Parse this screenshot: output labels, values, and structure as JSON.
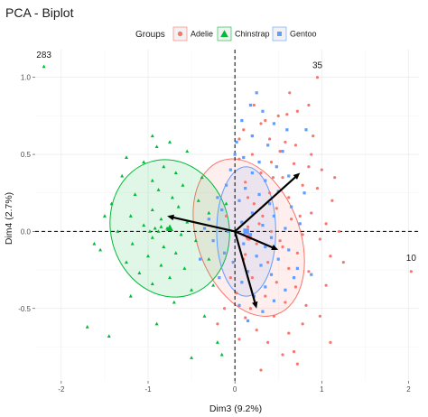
{
  "chart_data": {
    "type": "scatter",
    "title": "PCA - Biplot",
    "xlabel": "Dim3 (9.2%)",
    "ylabel": "Dim4 (2.7%)",
    "xlim": [
      -2.3,
      2.12
    ],
    "ylim": [
      -0.97,
      1.18
    ],
    "x_ticks": [
      -2,
      -1,
      0,
      1,
      2
    ],
    "y_ticks": [
      -0.5,
      0.0,
      0.5,
      1.0
    ],
    "x_tick_labels": [
      "-2",
      "-1",
      "0",
      "1",
      "2"
    ],
    "y_tick_labels": [
      "-0.5",
      "0.0",
      "0.5",
      "1.0"
    ],
    "grid": true,
    "legend": {
      "title": "Groups",
      "position": "top",
      "entries": [
        {
          "name": "Adelie",
          "color": "#F8766D",
          "shape": "circle"
        },
        {
          "name": "Chinstrap",
          "color": "#00BA38",
          "shape": "triangle"
        },
        {
          "name": "Gentoo",
          "color": "#619CFF",
          "shape": "square"
        }
      ]
    },
    "reference_lines": {
      "x": 0,
      "y": 0,
      "style": "dashed"
    },
    "series": [
      {
        "name": "Adelie",
        "color": "#F8766D",
        "shape": "circle",
        "ellipse": {
          "cx": 0.16,
          "cy": -0.04,
          "rx": 0.59,
          "ry": 0.53,
          "angle": -20
        },
        "centroid": [
          0.16,
          -0.04
        ],
        "points": [
          [
            0.95,
            1.0
          ],
          [
            0.85,
            0.82
          ],
          [
            0.72,
            0.78
          ],
          [
            0.6,
            0.76
          ],
          [
            0.35,
            0.72
          ],
          [
            0.3,
            0.7
          ],
          [
            0.1,
            0.66
          ],
          [
            0.05,
            0.6
          ],
          [
            0.2,
            0.62
          ],
          [
            0.4,
            0.6
          ],
          [
            0.58,
            0.58
          ],
          [
            0.7,
            0.56
          ],
          [
            0.52,
            0.52
          ],
          [
            0.2,
            0.5
          ],
          [
            0.05,
            0.47
          ],
          [
            0.42,
            0.45
          ],
          [
            0.68,
            0.44
          ],
          [
            0.85,
            0.42
          ],
          [
            1.0,
            0.4
          ],
          [
            0.3,
            0.38
          ],
          [
            0.55,
            0.35
          ],
          [
            0.12,
            0.32
          ],
          [
            0.78,
            0.3
          ],
          [
            0.95,
            0.28
          ],
          [
            0.4,
            0.25
          ],
          [
            0.62,
            0.22
          ],
          [
            1.12,
            0.2
          ],
          [
            0.22,
            0.18
          ],
          [
            0.48,
            0.15
          ],
          [
            0.88,
            0.12
          ],
          [
            0.32,
            0.1
          ],
          [
            0.65,
            0.08
          ],
          [
            1.05,
            0.05
          ],
          [
            0.15,
            0.03
          ],
          [
            0.42,
            0.0
          ],
          [
            0.78,
            -0.02
          ],
          [
            0.98,
            -0.05
          ],
          [
            0.25,
            -0.08
          ],
          [
            0.55,
            -0.1
          ],
          [
            0.72,
            -0.14
          ],
          [
            1.1,
            -0.16
          ],
          [
            0.1,
            -0.18
          ],
          [
            0.38,
            -0.2
          ],
          [
            0.62,
            -0.24
          ],
          [
            0.85,
            -0.26
          ],
          [
            0.2,
            -0.3
          ],
          [
            0.48,
            -0.33
          ],
          [
            0.7,
            -0.36
          ],
          [
            0.02,
            -0.4
          ],
          [
            0.35,
            -0.42
          ],
          [
            0.58,
            -0.46
          ],
          [
            0.18,
            -0.5
          ],
          [
            0.45,
            -0.55
          ],
          [
            0.78,
            -0.6
          ],
          [
            0.25,
            -0.64
          ],
          [
            0.62,
            -0.66
          ],
          [
            0.38,
            -0.72
          ],
          [
            0.55,
            -0.8
          ],
          [
            0.72,
            -0.86
          ],
          [
            0.12,
            -0.56
          ],
          [
            -0.05,
            -0.3
          ],
          [
            -0.1,
            0.1
          ],
          [
            0.9,
            0.62
          ],
          [
            0.5,
            0.75
          ],
          [
            0.22,
            0.82
          ],
          [
            0.63,
            0.9
          ],
          [
            1.15,
            0.35
          ],
          [
            1.25,
            -0.2
          ],
          [
            0.82,
            -0.48
          ],
          [
            0.05,
            -0.7
          ],
          [
            -0.12,
            -0.5
          ],
          [
            -0.2,
            -0.6
          ],
          [
            0.3,
            -0.9
          ],
          [
            0.98,
            -0.55
          ],
          [
            1.1,
            -0.72
          ],
          [
            0.68,
            -0.78
          ],
          [
            0.12,
            -0.15
          ],
          [
            0.28,
            0.05
          ],
          [
            0.52,
            -0.06
          ],
          [
            0.44,
            0.35
          ],
          [
            0.75,
            0.1
          ],
          [
            1.05,
            -0.35
          ],
          [
            0.88,
            0.5
          ],
          [
            1.2,
            0.0
          ],
          [
            0.15,
            0.22
          ],
          [
            2.03,
            -0.26
          ]
        ]
      },
      {
        "name": "Chinstrap",
        "color": "#00BA38",
        "shape": "triangle",
        "ellipse": {
          "cx": -0.75,
          "cy": 0.02,
          "rx": 0.68,
          "ry": 0.45,
          "angle": -15
        },
        "centroid": [
          -0.75,
          0.02
        ],
        "points": [
          [
            -2.2,
            1.07
          ],
          [
            -0.75,
            0.58
          ],
          [
            -0.9,
            0.55
          ],
          [
            -0.55,
            0.52
          ],
          [
            -1.25,
            0.48
          ],
          [
            -1.05,
            0.45
          ],
          [
            -0.82,
            0.42
          ],
          [
            -0.68,
            0.38
          ],
          [
            -1.3,
            0.36
          ],
          [
            -0.95,
            0.33
          ],
          [
            -0.6,
            0.3
          ],
          [
            -0.88,
            0.27
          ],
          [
            -1.15,
            0.24
          ],
          [
            -0.72,
            0.22
          ],
          [
            -0.42,
            0.2
          ],
          [
            -1.42,
            0.18
          ],
          [
            -0.65,
            0.16
          ],
          [
            -0.95,
            0.14
          ],
          [
            -0.3,
            0.12
          ],
          [
            -1.2,
            0.1
          ],
          [
            -0.85,
            0.08
          ],
          [
            -0.55,
            0.06
          ],
          [
            -1.05,
            0.04
          ],
          [
            -0.78,
            0.02
          ],
          [
            -1.35,
            0.0
          ],
          [
            -0.62,
            -0.02
          ],
          [
            -0.95,
            -0.04
          ],
          [
            -0.45,
            -0.06
          ],
          [
            -1.18,
            -0.08
          ],
          [
            -0.82,
            -0.1
          ],
          [
            -1.55,
            -0.12
          ],
          [
            -0.68,
            -0.14
          ],
          [
            -1.0,
            -0.16
          ],
          [
            -0.3,
            -0.18
          ],
          [
            -1.25,
            -0.2
          ],
          [
            -0.85,
            -0.22
          ],
          [
            -0.58,
            -0.24
          ],
          [
            -1.1,
            -0.27
          ],
          [
            -0.75,
            -0.3
          ],
          [
            -0.95,
            -0.34
          ],
          [
            -0.5,
            -0.38
          ],
          [
            -1.2,
            -0.42
          ],
          [
            -0.7,
            -0.46
          ],
          [
            -1.7,
            -0.62
          ],
          [
            -1.45,
            -0.68
          ],
          [
            -0.9,
            -0.6
          ],
          [
            -0.35,
            -0.55
          ],
          [
            -0.2,
            -0.72
          ],
          [
            -0.5,
            -0.82
          ],
          [
            -0.15,
            -0.8
          ],
          [
            -0.95,
            0.62
          ],
          [
            -1.5,
            0.1
          ],
          [
            -1.62,
            -0.08
          ],
          [
            -0.98,
            0.0
          ],
          [
            -0.92,
            0.02
          ],
          [
            -0.88,
            0.0
          ],
          [
            -0.85,
            0.03
          ],
          [
            -0.38,
            0.35
          ],
          [
            -0.25,
            -0.35
          ],
          [
            -0.1,
            0.18
          ]
        ]
      },
      {
        "name": "Gentoo",
        "color": "#619CFF",
        "shape": "square",
        "ellipse": {
          "cx": 0.13,
          "cy": 0.0,
          "rx": 0.34,
          "ry": 0.42,
          "angle": 0
        },
        "centroid": [
          0.13,
          0.0
        ],
        "points": [
          [
            0.18,
            0.82
          ],
          [
            0.32,
            0.78
          ],
          [
            0.08,
            0.72
          ],
          [
            0.45,
            0.7
          ],
          [
            0.6,
            0.66
          ],
          [
            0.2,
            0.62
          ],
          [
            0.02,
            0.58
          ],
          [
            0.38,
            0.56
          ],
          [
            0.55,
            0.52
          ],
          [
            0.82,
            0.66
          ],
          [
            0.1,
            0.48
          ],
          [
            0.28,
            0.45
          ],
          [
            0.48,
            0.42
          ],
          [
            -0.05,
            0.4
          ],
          [
            0.2,
            0.38
          ],
          [
            0.62,
            0.36
          ],
          [
            0.35,
            0.33
          ],
          [
            -0.1,
            0.3
          ],
          [
            0.12,
            0.28
          ],
          [
            0.5,
            0.26
          ],
          [
            0.28,
            0.24
          ],
          [
            -0.2,
            0.22
          ],
          [
            0.05,
            0.2
          ],
          [
            0.4,
            0.18
          ],
          [
            0.65,
            0.16
          ],
          [
            -0.15,
            0.14
          ],
          [
            0.2,
            0.12
          ],
          [
            0.45,
            0.1
          ],
          [
            -0.3,
            0.08
          ],
          [
            0.08,
            0.06
          ],
          [
            0.32,
            0.04
          ],
          [
            0.58,
            0.02
          ],
          [
            -0.08,
            0.0
          ],
          [
            0.18,
            -0.02
          ],
          [
            0.42,
            -0.04
          ],
          [
            -0.25,
            -0.06
          ],
          [
            0.1,
            -0.08
          ],
          [
            0.35,
            -0.1
          ],
          [
            0.62,
            -0.12
          ],
          [
            -0.12,
            -0.14
          ],
          [
            0.25,
            -0.16
          ],
          [
            0.5,
            -0.18
          ],
          [
            -0.02,
            -0.2
          ],
          [
            0.3,
            -0.22
          ],
          [
            0.72,
            -0.24
          ],
          [
            0.15,
            -0.26
          ],
          [
            0.42,
            -0.28
          ],
          [
            -0.18,
            -0.3
          ],
          [
            0.08,
            -0.33
          ],
          [
            0.35,
            -0.36
          ],
          [
            0.58,
            -0.38
          ],
          [
            0.22,
            -0.42
          ],
          [
            0.45,
            -0.45
          ],
          [
            0.05,
            -0.48
          ],
          [
            0.32,
            -0.52
          ],
          [
            0.15,
            -0.58
          ],
          [
            0.75,
            0.05
          ],
          [
            0.68,
            -0.3
          ],
          [
            0.88,
            -0.28
          ],
          [
            0.8,
            0.25
          ],
          [
            -0.35,
            0.02
          ],
          [
            -0.4,
            -0.18
          ],
          [
            0.0,
            0.5
          ],
          [
            0.25,
            0.9
          ]
        ]
      }
    ],
    "outlier_labels": [
      {
        "text": "283",
        "x": -2.2,
        "y": 1.07
      },
      {
        "text": "35",
        "x": 0.95,
        "y": 1.0
      },
      {
        "text": "10",
        "x": 2.03,
        "y": -0.26
      }
    ],
    "arrows": [
      {
        "x": 0.75,
        "y": 0.38
      },
      {
        "x": -0.78,
        "y": 0.1
      },
      {
        "x": 0.25,
        "y": -0.5
      },
      {
        "x": 0.5,
        "y": -0.12
      }
    ]
  }
}
